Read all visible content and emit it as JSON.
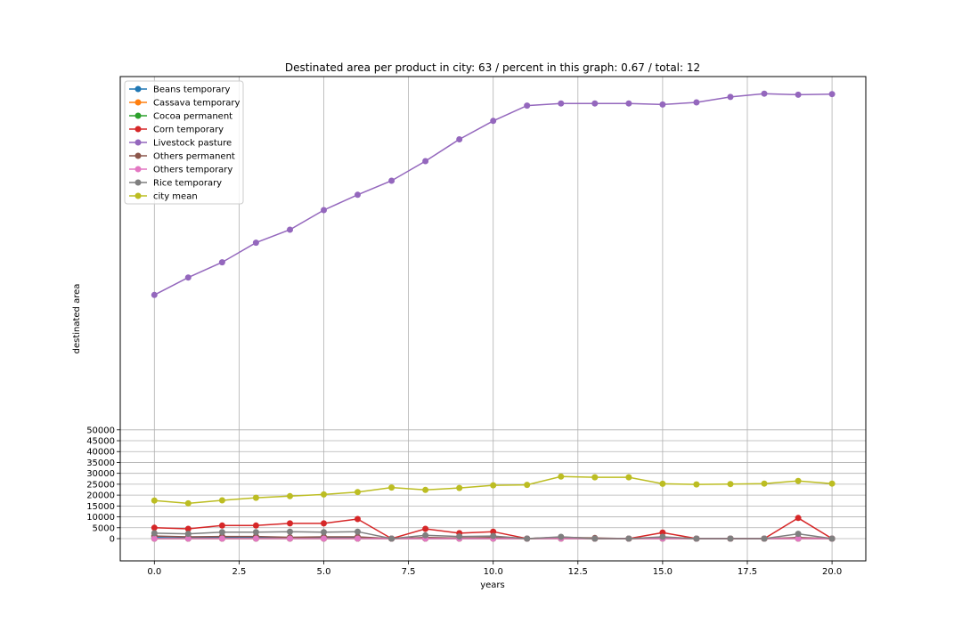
{
  "chart_data": {
    "type": "line",
    "title": "Destinated area per product in city: 63 / percent in this graph: 0.67 / total: 12",
    "xlabel": "years",
    "ylabel": "destinated area",
    "xlim": [
      -1,
      21
    ],
    "xticks": [
      0.0,
      2.5,
      5.0,
      7.5,
      10.0,
      12.5,
      15.0,
      17.5,
      20.0
    ],
    "xtick_labels": [
      "0.0",
      "2.5",
      "5.0",
      "7.5",
      "10.0",
      "12.5",
      "15.0",
      "17.5",
      "20.0"
    ],
    "yticks": [
      0,
      5000,
      10000,
      15000,
      20000,
      25000,
      30000,
      35000,
      40000,
      45000,
      50000
    ],
    "ytick_labels": [
      "0",
      "5000",
      "10000",
      "15000",
      "20000",
      "25000",
      "30000",
      "35000",
      "40000",
      "45000",
      "50000"
    ],
    "ylim": [
      -10000,
      212000
    ],
    "grid": true,
    "legend_position": "top-left",
    "x": [
      0,
      1,
      2,
      3,
      4,
      5,
      6,
      7,
      8,
      9,
      10,
      11,
      12,
      13,
      14,
      15,
      16,
      17,
      18,
      19,
      20
    ],
    "series": [
      {
        "name": "Beans temporary",
        "color": "#1f77b4",
        "values": [
          500,
          300,
          600,
          600,
          400,
          400,
          500,
          0,
          300,
          200,
          300,
          0,
          100,
          0,
          0,
          200,
          0,
          0,
          0,
          300,
          0
        ]
      },
      {
        "name": "Cassava temporary",
        "color": "#ff7f0e",
        "values": [
          0,
          0,
          0,
          0,
          0,
          0,
          0,
          0,
          0,
          0,
          0,
          0,
          0,
          0,
          0,
          0,
          0,
          0,
          0,
          0,
          0
        ]
      },
      {
        "name": "Cocoa permanent",
        "color": "#2ca02c",
        "values": [
          0,
          0,
          0,
          0,
          0,
          0,
          0,
          0,
          0,
          0,
          0,
          0,
          0,
          0,
          0,
          0,
          0,
          0,
          0,
          0,
          0
        ]
      },
      {
        "name": "Corn temporary",
        "color": "#d62728",
        "values": [
          5000,
          4500,
          6000,
          6000,
          7000,
          7000,
          9000,
          0,
          4500,
          2500,
          3200,
          0,
          600,
          0,
          0,
          2800,
          0,
          0,
          0,
          9500,
          0
        ]
      },
      {
        "name": "Livestock pasture",
        "color": "#9467bd",
        "values": [
          112000,
          120000,
          127000,
          136000,
          142000,
          151000,
          158000,
          164500,
          173500,
          183500,
          192000,
          199000,
          200000,
          200000,
          200000,
          199500,
          200500,
          203000,
          204500,
          204000,
          204300
        ]
      },
      {
        "name": "Others permanent",
        "color": "#8c564b",
        "values": [
          1200,
          800,
          1000,
          1000,
          600,
          800,
          800,
          0,
          500,
          300,
          500,
          0,
          600,
          300,
          0,
          400,
          0,
          0,
          0,
          500,
          0
        ]
      },
      {
        "name": "Others temporary",
        "color": "#e377c2",
        "values": [
          0,
          0,
          0,
          0,
          0,
          0,
          0,
          0,
          0,
          0,
          0,
          0,
          0,
          0,
          0,
          0,
          0,
          0,
          0,
          0,
          0
        ]
      },
      {
        "name": "Rice temporary",
        "color": "#7f7f7f",
        "values": [
          2500,
          2200,
          3000,
          3000,
          3200,
          3000,
          3200,
          0,
          1500,
          1000,
          1200,
          0,
          800,
          0,
          0,
          800,
          0,
          0,
          0,
          2200,
          0
        ]
      },
      {
        "name": "city mean",
        "color": "#bcbd22",
        "values": [
          17500,
          16200,
          17600,
          18800,
          19500,
          20300,
          21400,
          23500,
          22400,
          23300,
          24500,
          24700,
          28500,
          28200,
          28200,
          25200,
          24900,
          25100,
          25300,
          26500,
          25300
        ]
      }
    ]
  }
}
